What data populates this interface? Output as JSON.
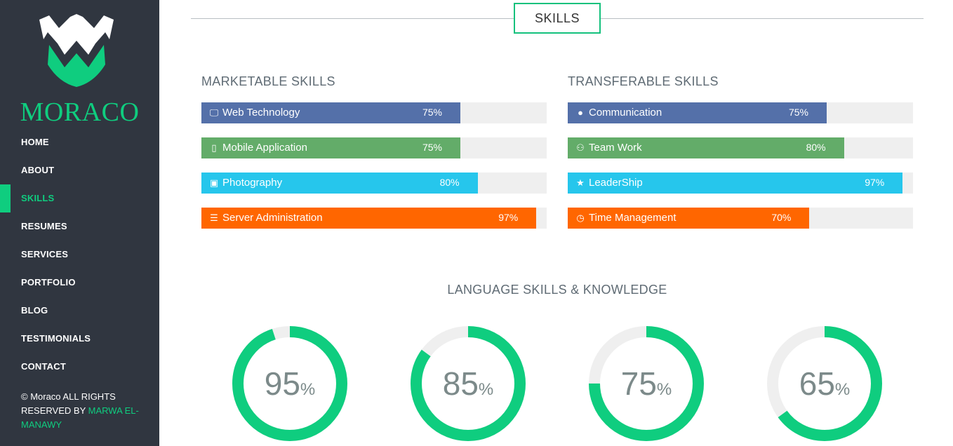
{
  "brand": "MORACO",
  "nav": [
    {
      "label": "HOME",
      "active": false
    },
    {
      "label": "ABOUT",
      "active": false
    },
    {
      "label": "SKILLS",
      "active": true
    },
    {
      "label": "RESUMES",
      "active": false
    },
    {
      "label": "SERVICES",
      "active": false
    },
    {
      "label": "PORTFOLIO",
      "active": false
    },
    {
      "label": "BLOG",
      "active": false
    },
    {
      "label": "TESTIMONIALS",
      "active": false
    },
    {
      "label": "CONTACT",
      "active": false
    }
  ],
  "copyright": {
    "text": "© Moraco ALL RIGHTS RESERVED BY ",
    "author": "MARWA EL-MANAWY"
  },
  "section_title": "SKILLS",
  "marketable": {
    "title": "MARKETABLE SKILLS",
    "skills": [
      {
        "label": "Web Technology",
        "percent": 75,
        "percent_text": "75%",
        "icon": "monitor-icon",
        "color": "#5470a9"
      },
      {
        "label": "Mobile Application",
        "percent": 75,
        "percent_text": "75%",
        "icon": "mobile-icon",
        "color": "#63ac69"
      },
      {
        "label": "Photography",
        "percent": 80,
        "percent_text": "80%",
        "icon": "camera-icon",
        "color": "#26c6ec"
      },
      {
        "label": "Server Administration",
        "percent": 97,
        "percent_text": "97%",
        "icon": "server-icon",
        "color": "#ff6600"
      }
    ]
  },
  "transferable": {
    "title": "TRANSFERABLE SKILLS",
    "skills": [
      {
        "label": "Communication",
        "percent": 75,
        "percent_text": "75%",
        "icon": "comments-icon",
        "color": "#5470a9"
      },
      {
        "label": "Team Work",
        "percent": 80,
        "percent_text": "80%",
        "icon": "users-icon",
        "color": "#63ac69"
      },
      {
        "label": "LeaderShip",
        "percent": 97,
        "percent_text": "97%",
        "icon": "trophy-icon",
        "color": "#26c6ec"
      },
      {
        "label": "Time Management",
        "percent": 70,
        "percent_text": "70%",
        "icon": "clock-icon",
        "color": "#ff6600"
      }
    ]
  },
  "languages": {
    "title": "LANGUAGE SKILLS & KNOWLEDGE",
    "items": [
      {
        "value": 95,
        "value_text": "95",
        "unit": "%"
      },
      {
        "value": 85,
        "value_text": "85",
        "unit": "%"
      },
      {
        "value": 75,
        "value_text": "75",
        "unit": "%"
      },
      {
        "value": 65,
        "value_text": "65",
        "unit": "%"
      }
    ]
  },
  "colors": {
    "accent": "#0fcd7f",
    "sidebar": "#303640",
    "track": "#efefef"
  }
}
